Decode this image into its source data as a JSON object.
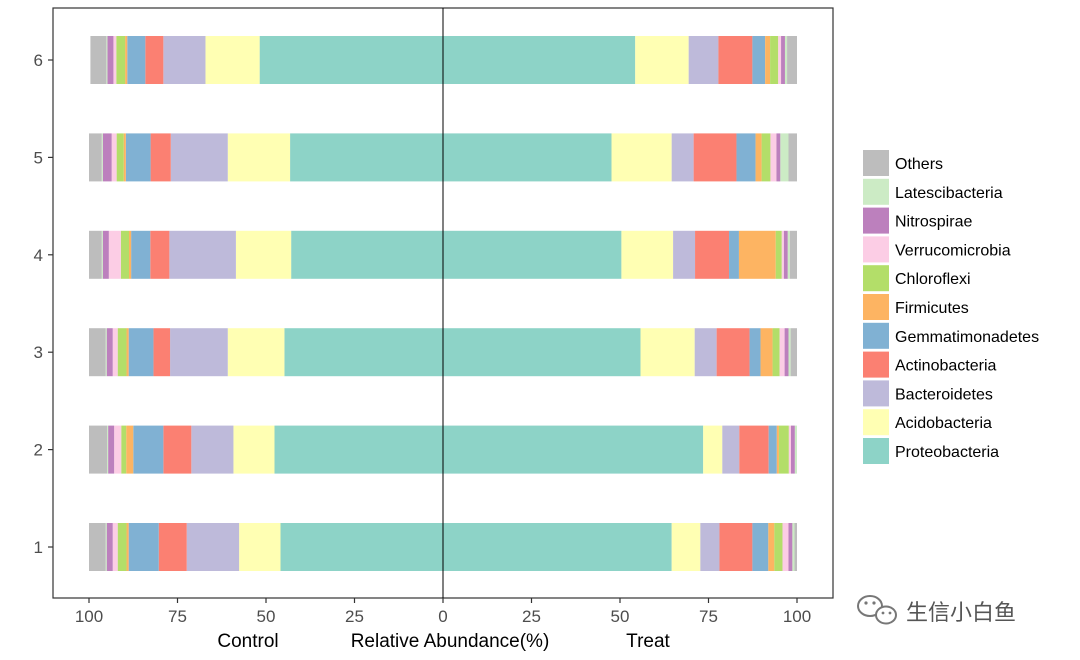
{
  "chart_data": {
    "type": "bar",
    "orientation": "horizontal",
    "layout": "mirrored-stacked-percent",
    "categories": [
      "1",
      "2",
      "3",
      "4",
      "5",
      "6"
    ],
    "xlabel": "Relative Abundance(%)",
    "left_group_label": "Control",
    "right_group_label": "Treat",
    "x_ticks": [
      "100",
      "75",
      "50",
      "25",
      "0",
      "25",
      "50",
      "75",
      "100"
    ],
    "xlim": [
      -100,
      100
    ],
    "grid": false,
    "legend_position": "right",
    "series": [
      {
        "name": "Proteobacteria",
        "color": "#8DD3C7",
        "control": [
          45.9,
          47.6,
          44.8,
          42.9,
          43.2,
          51.8
        ],
        "treat": [
          64.6,
          73.5,
          55.8,
          50.4,
          47.6,
          54.3
        ]
      },
      {
        "name": "Acidobacteria",
        "color": "#FFFFB3",
        "control": [
          11.7,
          11.6,
          16.0,
          15.6,
          17.6,
          15.3
        ],
        "treat": [
          8.1,
          5.4,
          15.3,
          14.6,
          17.0,
          15.1
        ]
      },
      {
        "name": "Bacteroidetes",
        "color": "#BEBADA",
        "control": [
          14.8,
          11.9,
          16.3,
          18.8,
          16.1,
          11.9
        ],
        "treat": [
          5.4,
          4.8,
          6.2,
          6.2,
          6.2,
          8.4
        ]
      },
      {
        "name": "Actinobacteria",
        "color": "#FB8072",
        "control": [
          7.9,
          7.9,
          4.7,
          5.4,
          5.7,
          5.1
        ],
        "treat": [
          9.3,
          8.3,
          9.3,
          9.6,
          12.1,
          9.6
        ]
      },
      {
        "name": "Gemmatimonadetes",
        "color": "#80B1D3",
        "control": [
          8.5,
          8.5,
          7.0,
          5.4,
          7.0,
          5.1
        ],
        "treat": [
          4.5,
          2.3,
          3.1,
          2.8,
          5.4,
          3.6
        ]
      },
      {
        "name": "Firmicutes",
        "color": "#FDB462",
        "control": [
          0.6,
          2.0,
          0.6,
          0.6,
          0.6,
          0.6
        ],
        "treat": [
          1.7,
          0.6,
          3.4,
          10.4,
          1.7,
          1.4
        ]
      },
      {
        "name": "Chloroflexi",
        "color": "#B3DE69",
        "control": [
          2.5,
          1.4,
          2.5,
          2.3,
          2.0,
          2.5
        ],
        "treat": [
          2.3,
          2.8,
          2.0,
          1.7,
          2.5,
          2.3
        ]
      },
      {
        "name": "Verrucomicrobia",
        "color": "#FCCDE5",
        "control": [
          1.4,
          2.0,
          1.4,
          3.4,
          1.4,
          0.8
        ],
        "treat": [
          1.7,
          0.6,
          1.4,
          0.6,
          1.7,
          0.8
        ]
      },
      {
        "name": "Nitrospirae",
        "color": "#BC80BD",
        "control": [
          1.7,
          1.7,
          1.7,
          1.7,
          2.5,
          1.7
        ],
        "treat": [
          1.1,
          1.1,
          1.1,
          1.1,
          1.1,
          1.1
        ]
      },
      {
        "name": "Latescibacteria",
        "color": "#CCEBC5",
        "control": [
          0.3,
          0.3,
          0.3,
          0.3,
          0.3,
          0.3
        ],
        "treat": [
          0.6,
          0.6,
          0.6,
          0.6,
          2.3,
          0.6
        ]
      },
      {
        "name": "Others",
        "color": "#BDBDBD",
        "control": [
          4.7,
          5.1,
          4.7,
          3.6,
          3.6,
          4.5
        ],
        "treat": [
          0.7,
          0.0,
          1.8,
          2.0,
          2.4,
          2.8
        ]
      }
    ],
    "legend_order": [
      "Others",
      "Latescibacteria",
      "Nitrospirae",
      "Verrucomicrobia",
      "Chloroflexi",
      "Firmicutes",
      "Gemmatimonadetes",
      "Actinobacteria",
      "Bacteroidetes",
      "Acidobacteria",
      "Proteobacteria"
    ]
  },
  "watermark": {
    "text": "生信小白鱼",
    "icon": "wechat-icon"
  }
}
